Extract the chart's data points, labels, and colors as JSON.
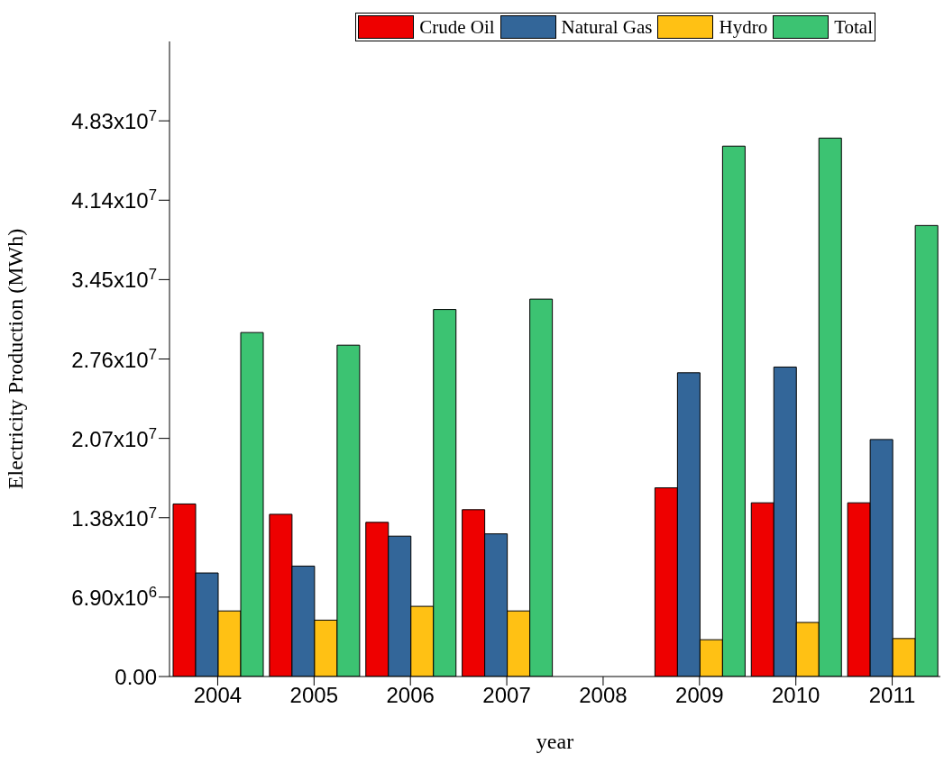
{
  "chart_data": {
    "type": "bar",
    "xlabel": "year",
    "ylabel": "Electricity Production (MWh)",
    "categories": [
      "2004",
      "2005",
      "2006",
      "2007",
      "2008",
      "2009",
      "2010",
      "2011"
    ],
    "series": [
      {
        "name": "Crude Oil",
        "color": "#ee0000",
        "values": [
          15000000,
          14100000,
          13400000,
          14500000,
          null,
          16400000,
          15100000,
          15100000
        ]
      },
      {
        "name": "Natural Gas",
        "color": "#336699",
        "values": [
          9000000,
          9600000,
          12200000,
          12400000,
          null,
          26400000,
          26900000,
          20600000
        ]
      },
      {
        "name": "Hydro",
        "color": "#ffc114",
        "values": [
          5700000,
          4900000,
          6100000,
          5700000,
          null,
          3200000,
          4700000,
          3300000
        ]
      },
      {
        "name": "Total",
        "color": "#3cc372",
        "values": [
          29900000,
          28800000,
          31900000,
          32800000,
          null,
          46100000,
          46800000,
          39200000
        ]
      }
    ],
    "ylim": [
      0,
      55200000
    ],
    "yticks": [
      {
        "value": 0,
        "label": "0.00"
      },
      {
        "value": 6900000,
        "label": "6.90x10$^{6}$"
      },
      {
        "value": 13800000,
        "label": "1.38x10$^{7}$"
      },
      {
        "value": 20700000,
        "label": "2.07x10$^{7}$"
      },
      {
        "value": 27600000,
        "label": "2.76x10$^{7}$"
      },
      {
        "value": 34500000,
        "label": "3.45x10$^{7}$"
      },
      {
        "value": 41400000,
        "label": "4.14x10$^{7}$"
      },
      {
        "value": 48300000,
        "label": "4.83x10$^{7}$"
      }
    ],
    "grid": false,
    "legend": "top"
  }
}
